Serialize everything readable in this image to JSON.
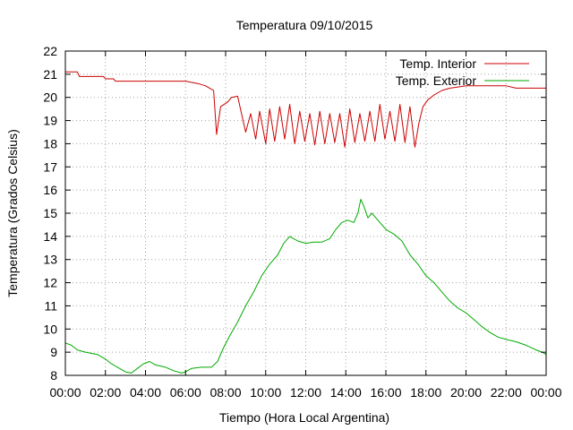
{
  "chart_data": {
    "type": "line",
    "title": "Temperatura 09/10/2015",
    "xlabel": "Tiempo (Hora Local Argentina)",
    "ylabel": "Temperatura (Grados Celsius)",
    "xlim": [
      "00:00",
      "24:00"
    ],
    "ylim": [
      8,
      22
    ],
    "grid": true,
    "legend": "top-right",
    "x_ticks": [
      "00:00",
      "02:00",
      "04:00",
      "06:00",
      "08:00",
      "10:00",
      "12:00",
      "14:00",
      "16:00",
      "18:00",
      "20:00",
      "22:00",
      "00:00"
    ],
    "y_ticks": [
      "8",
      "9",
      "10",
      "11",
      "12",
      "13",
      "14",
      "15",
      "16",
      "17",
      "18",
      "19",
      "20",
      "21",
      "22"
    ],
    "series": [
      {
        "name": "Temp. Interior",
        "color": "#cc0000",
        "x_hours": [
          0,
          0.6,
          0.7,
          1.9,
          2.0,
          2.4,
          2.5,
          3.0,
          3.3,
          6.0,
          6.6,
          7.0,
          7.2,
          7.4,
          7.55,
          7.75,
          8.1,
          8.3,
          8.6,
          9.0,
          9.25,
          9.5,
          9.7,
          10.0,
          10.2,
          10.45,
          10.7,
          10.95,
          11.2,
          11.45,
          11.7,
          11.95,
          12.2,
          12.45,
          12.7,
          12.95,
          13.2,
          13.45,
          13.7,
          13.95,
          14.2,
          14.45,
          14.7,
          14.95,
          15.2,
          15.45,
          15.7,
          15.95,
          16.2,
          16.45,
          16.7,
          16.95,
          17.2,
          17.45,
          17.65,
          17.85,
          18.1,
          18.4,
          18.8,
          19.2,
          19.6,
          20.0,
          20.4,
          21.0,
          22.0,
          22.5,
          24.0
        ],
        "values": [
          21.1,
          21.1,
          20.9,
          20.9,
          20.8,
          20.8,
          20.7,
          20.7,
          20.7,
          20.7,
          20.6,
          20.5,
          20.4,
          20.3,
          18.4,
          19.6,
          19.8,
          20.0,
          20.05,
          18.5,
          19.3,
          18.2,
          19.4,
          18.0,
          19.5,
          18.1,
          19.6,
          18.2,
          19.7,
          18.0,
          19.4,
          18.1,
          19.3,
          17.95,
          19.4,
          18.0,
          19.3,
          18.05,
          19.3,
          17.85,
          19.5,
          18.05,
          19.3,
          18.1,
          19.4,
          18.1,
          19.7,
          18.2,
          19.4,
          18.1,
          19.7,
          18.05,
          19.6,
          17.85,
          18.9,
          19.6,
          19.9,
          20.1,
          20.3,
          20.4,
          20.45,
          20.5,
          20.5,
          20.5,
          20.5,
          20.4,
          20.4
        ]
      },
      {
        "name": "Temp. Exterior",
        "color": "#00aa00",
        "x_hours": [
          0,
          0.3,
          0.6,
          1.0,
          1.6,
          2.0,
          2.3,
          2.7,
          3.0,
          3.3,
          3.6,
          3.9,
          4.2,
          4.5,
          5.0,
          5.4,
          5.8,
          6.0,
          6.3,
          6.8,
          7.3,
          7.6,
          7.9,
          8.2,
          8.6,
          9.0,
          9.4,
          9.8,
          10.2,
          10.6,
          10.9,
          11.2,
          11.6,
          12.0,
          12.4,
          12.8,
          13.2,
          13.5,
          13.8,
          14.1,
          14.4,
          14.6,
          14.75,
          14.9,
          15.1,
          15.3,
          15.6,
          16.0,
          16.4,
          16.8,
          17.2,
          17.6,
          18.0,
          18.4,
          18.8,
          19.2,
          19.6,
          20.0,
          20.4,
          20.8,
          21.2,
          21.6,
          22.0,
          22.5,
          23.0,
          23.5,
          23.8,
          24.0
        ],
        "values": [
          9.4,
          9.3,
          9.1,
          9.0,
          8.9,
          8.7,
          8.5,
          8.3,
          8.15,
          8.1,
          8.3,
          8.5,
          8.6,
          8.45,
          8.35,
          8.2,
          8.1,
          8.15,
          8.3,
          8.35,
          8.35,
          8.6,
          9.2,
          9.7,
          10.3,
          11.0,
          11.6,
          12.3,
          12.8,
          13.2,
          13.7,
          14.0,
          13.8,
          13.7,
          13.75,
          13.75,
          13.9,
          14.3,
          14.6,
          14.7,
          14.6,
          15.0,
          15.6,
          15.3,
          14.8,
          15.0,
          14.7,
          14.3,
          14.1,
          13.8,
          13.2,
          12.8,
          12.3,
          12.0,
          11.6,
          11.2,
          10.9,
          10.7,
          10.4,
          10.1,
          9.85,
          9.65,
          9.55,
          9.45,
          9.3,
          9.1,
          9.0,
          8.9
        ]
      }
    ]
  }
}
